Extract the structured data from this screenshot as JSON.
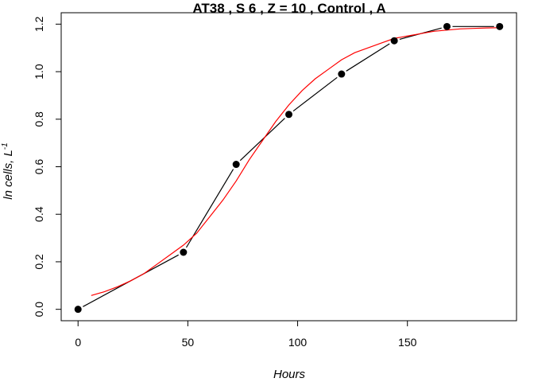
{
  "chart_data": {
    "type": "line",
    "title": "AT38 , S 6 , Z = 10 , Control , A",
    "xlabel": "Hours",
    "ylabel_main": "ln cells, L",
    "ylabel_sup": "-1",
    "xlim": [
      -7.68,
      199.68
    ],
    "ylim": [
      -0.048,
      1.248
    ],
    "x_ticks": [
      0,
      50,
      100,
      150
    ],
    "x_tick_labels": [
      "0",
      "50",
      "100",
      "150"
    ],
    "y_ticks": [
      0.0,
      0.2,
      0.4,
      0.6,
      0.8,
      1.0,
      1.2
    ],
    "y_tick_labels": [
      "0.0",
      "0.2",
      "0.4",
      "0.6",
      "0.8",
      "1.0",
      "1.2"
    ],
    "grid": false,
    "series": [
      {
        "style": "points-and-line",
        "color": "#000000",
        "x": [
          0,
          48,
          72,
          96,
          120,
          144,
          168,
          192
        ],
        "y": [
          0.0,
          0.24,
          0.61,
          0.82,
          0.99,
          1.13,
          1.19,
          1.19
        ]
      },
      {
        "style": "curve",
        "color": "#ff0000",
        "x": [
          6,
          12,
          18,
          24,
          30,
          36,
          42,
          48,
          54,
          60,
          66,
          72,
          78,
          84,
          90,
          96,
          102,
          108,
          114,
          120,
          126,
          132,
          138,
          144,
          150,
          156,
          162,
          168,
          174,
          180,
          186,
          192
        ],
        "y": [
          0.058,
          0.074,
          0.095,
          0.12,
          0.15,
          0.19,
          0.23,
          0.27,
          0.32,
          0.39,
          0.46,
          0.54,
          0.63,
          0.71,
          0.79,
          0.86,
          0.92,
          0.97,
          1.01,
          1.05,
          1.08,
          1.1,
          1.12,
          1.14,
          1.15,
          1.16,
          1.17,
          1.175,
          1.18,
          1.182,
          1.184,
          1.185
        ]
      }
    ]
  }
}
